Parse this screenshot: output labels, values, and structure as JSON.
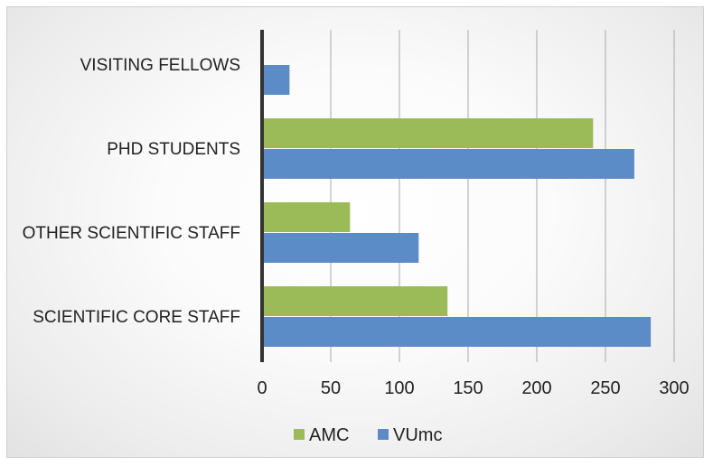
{
  "chart_data": {
    "type": "bar",
    "orientation": "horizontal",
    "categories": [
      "SCIENTIFIC CORE STAFF",
      "OTHER SCIENTIFIC STAFF",
      "PHD STUDENTS",
      "VISITING FELLOWS"
    ],
    "series": [
      {
        "name": "AMC",
        "color": "#9BBB59",
        "values": [
          135,
          64,
          241,
          0
        ]
      },
      {
        "name": "VUmc",
        "color": "#5B8CC8",
        "values": [
          283,
          114,
          271,
          20
        ]
      }
    ],
    "xticks": [
      "0",
      "50",
      "100",
      "150",
      "200",
      "250",
      "300"
    ],
    "xlim": [
      0,
      300
    ],
    "grid": "vertical",
    "legend_position": "bottom",
    "title": "",
    "xlabel": "",
    "ylabel": ""
  }
}
